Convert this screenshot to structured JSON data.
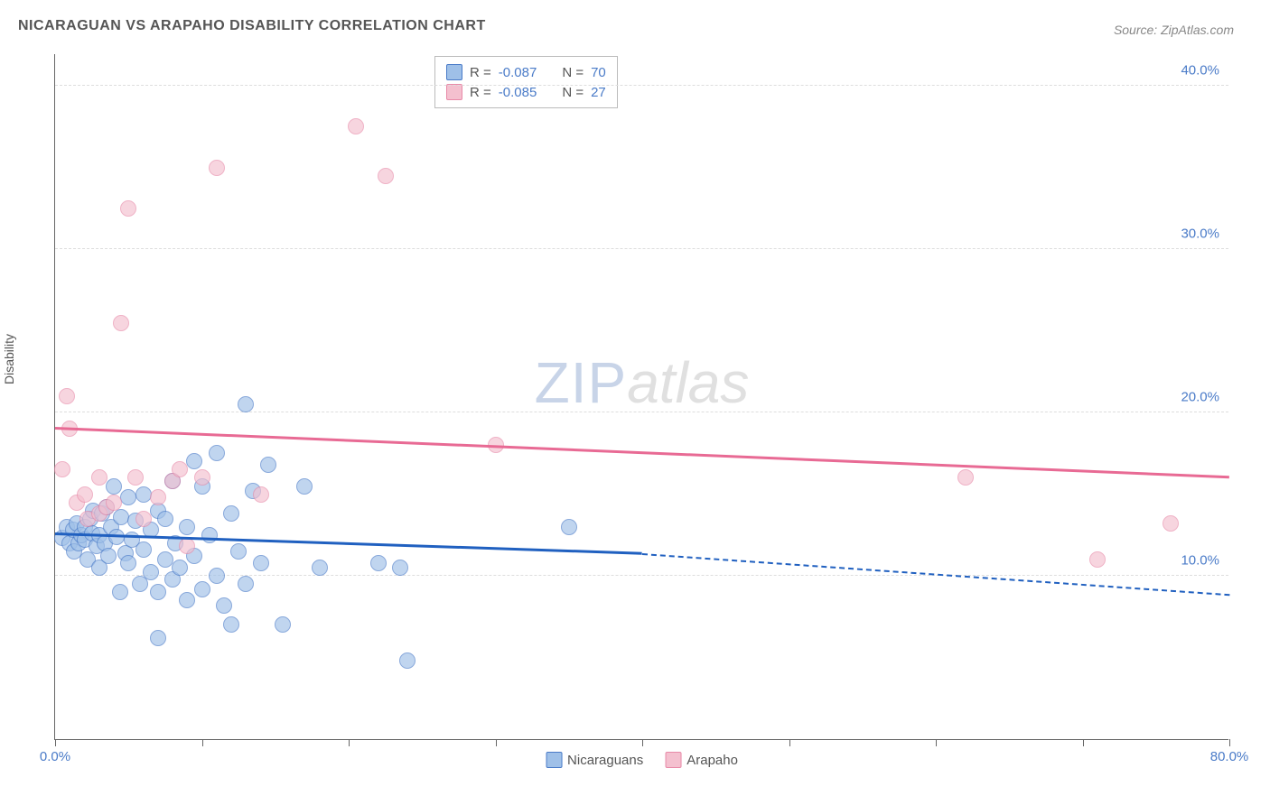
{
  "title": "NICARAGUAN VS ARAPAHO DISABILITY CORRELATION CHART",
  "source_label": "Source: ZipAtlas.com",
  "y_axis_label": "Disability",
  "watermark": {
    "part1": "ZIP",
    "part2": "atlas"
  },
  "chart": {
    "type": "scatter",
    "background_color": "#ffffff",
    "grid_color": "#dddddd",
    "axis_color": "#666666",
    "tick_label_color": "#4a7bc8",
    "xlim": [
      0,
      80
    ],
    "ylim": [
      0,
      42
    ],
    "x_ticks": [
      0,
      10,
      20,
      30,
      40,
      50,
      60,
      70,
      80
    ],
    "x_tick_labels": {
      "0": "0.0%",
      "80": "80.0%"
    },
    "y_grid": [
      10,
      20,
      30,
      40
    ],
    "y_tick_labels": {
      "10": "10.0%",
      "20": "20.0%",
      "30": "30.0%",
      "40": "40.0%"
    },
    "label_fontsize": 15
  },
  "series": [
    {
      "name": "Nicaraguans",
      "fill_color": "#9fc0e8",
      "stroke_color": "#4a7bc8",
      "line_color": "#2060c0",
      "marker_radius": 9,
      "fill_opacity": 0.65,
      "R": "-0.087",
      "N": "70",
      "trend": {
        "x1": 0,
        "y1": 12.5,
        "x2_solid": 40,
        "y2_solid": 11.3,
        "x2_dash": 80,
        "y2_dash": 8.8
      },
      "points": [
        [
          0.5,
          12.3
        ],
        [
          0.8,
          13.0
        ],
        [
          1.0,
          12.0
        ],
        [
          1.2,
          12.8
        ],
        [
          1.3,
          11.5
        ],
        [
          1.5,
          13.2
        ],
        [
          1.6,
          12.0
        ],
        [
          1.8,
          12.5
        ],
        [
          2.0,
          13.0
        ],
        [
          2.0,
          12.2
        ],
        [
          2.2,
          11.0
        ],
        [
          2.4,
          13.5
        ],
        [
          2.5,
          12.6
        ],
        [
          2.6,
          14.0
        ],
        [
          2.8,
          11.8
        ],
        [
          3.0,
          12.5
        ],
        [
          3.0,
          10.5
        ],
        [
          3.2,
          13.8
        ],
        [
          3.4,
          12.0
        ],
        [
          3.5,
          14.2
        ],
        [
          3.6,
          11.2
        ],
        [
          3.8,
          13.0
        ],
        [
          4.0,
          15.5
        ],
        [
          4.2,
          12.4
        ],
        [
          4.4,
          9.0
        ],
        [
          4.5,
          13.6
        ],
        [
          4.8,
          11.4
        ],
        [
          5.0,
          14.8
        ],
        [
          5.0,
          10.8
        ],
        [
          5.2,
          12.2
        ],
        [
          5.5,
          13.4
        ],
        [
          5.8,
          9.5
        ],
        [
          6.0,
          15.0
        ],
        [
          6.0,
          11.6
        ],
        [
          6.5,
          10.2
        ],
        [
          6.5,
          12.8
        ],
        [
          7.0,
          9.0
        ],
        [
          7.0,
          14.0
        ],
        [
          7.0,
          6.2
        ],
        [
          7.5,
          11.0
        ],
        [
          7.5,
          13.5
        ],
        [
          8.0,
          15.8
        ],
        [
          8.0,
          9.8
        ],
        [
          8.2,
          12.0
        ],
        [
          8.5,
          10.5
        ],
        [
          9.0,
          8.5
        ],
        [
          9.0,
          13.0
        ],
        [
          9.5,
          17.0
        ],
        [
          9.5,
          11.2
        ],
        [
          10.0,
          9.2
        ],
        [
          10.0,
          15.5
        ],
        [
          10.5,
          12.5
        ],
        [
          11.0,
          10.0
        ],
        [
          11.0,
          17.5
        ],
        [
          11.5,
          8.2
        ],
        [
          12.0,
          13.8
        ],
        [
          12.0,
          7.0
        ],
        [
          12.5,
          11.5
        ],
        [
          13.0,
          20.5
        ],
        [
          13.0,
          9.5
        ],
        [
          13.5,
          15.2
        ],
        [
          14.0,
          10.8
        ],
        [
          14.5,
          16.8
        ],
        [
          15.5,
          7.0
        ],
        [
          17.0,
          15.5
        ],
        [
          18.0,
          10.5
        ],
        [
          22.0,
          10.8
        ],
        [
          24.0,
          4.8
        ],
        [
          23.5,
          10.5
        ],
        [
          35.0,
          13.0
        ]
      ]
    },
    {
      "name": "Arapaho",
      "fill_color": "#f4c0cf",
      "stroke_color": "#e88aa8",
      "line_color": "#e86a94",
      "marker_radius": 9,
      "fill_opacity": 0.65,
      "R": "-0.085",
      "N": "27",
      "trend": {
        "x1": 0,
        "y1": 19.0,
        "x2_solid": 80,
        "y2_solid": 16.0
      },
      "points": [
        [
          0.5,
          16.5
        ],
        [
          0.8,
          21.0
        ],
        [
          1.0,
          19.0
        ],
        [
          1.5,
          14.5
        ],
        [
          2.0,
          15.0
        ],
        [
          2.2,
          13.5
        ],
        [
          3.0,
          13.8
        ],
        [
          3.0,
          16.0
        ],
        [
          3.5,
          14.2
        ],
        [
          4.0,
          14.5
        ],
        [
          4.5,
          25.5
        ],
        [
          5.0,
          32.5
        ],
        [
          5.5,
          16.0
        ],
        [
          6.0,
          13.5
        ],
        [
          7.0,
          14.8
        ],
        [
          8.0,
          15.8
        ],
        [
          8.5,
          16.5
        ],
        [
          9.0,
          11.8
        ],
        [
          10.0,
          16.0
        ],
        [
          11.0,
          35.0
        ],
        [
          14.0,
          15.0
        ],
        [
          20.5,
          37.5
        ],
        [
          22.5,
          34.5
        ],
        [
          30.0,
          18.0
        ],
        [
          62.0,
          16.0
        ],
        [
          71.0,
          11.0
        ],
        [
          76.0,
          13.2
        ]
      ]
    }
  ],
  "legend_box": {
    "rows": [
      {
        "swatch_fill": "#9fc0e8",
        "swatch_stroke": "#4a7bc8",
        "r_label": "R =",
        "r_val": "-0.087",
        "n_label": "N =",
        "n_val": "70"
      },
      {
        "swatch_fill": "#f4c0cf",
        "swatch_stroke": "#e88aa8",
        "r_label": "R =",
        "r_val": "-0.085",
        "n_label": "N =",
        "n_val": "27"
      }
    ]
  },
  "bottom_legend": [
    {
      "swatch_fill": "#9fc0e8",
      "swatch_stroke": "#4a7bc8",
      "label": "Nicaraguans"
    },
    {
      "swatch_fill": "#f4c0cf",
      "swatch_stroke": "#e88aa8",
      "label": "Arapaho"
    }
  ]
}
